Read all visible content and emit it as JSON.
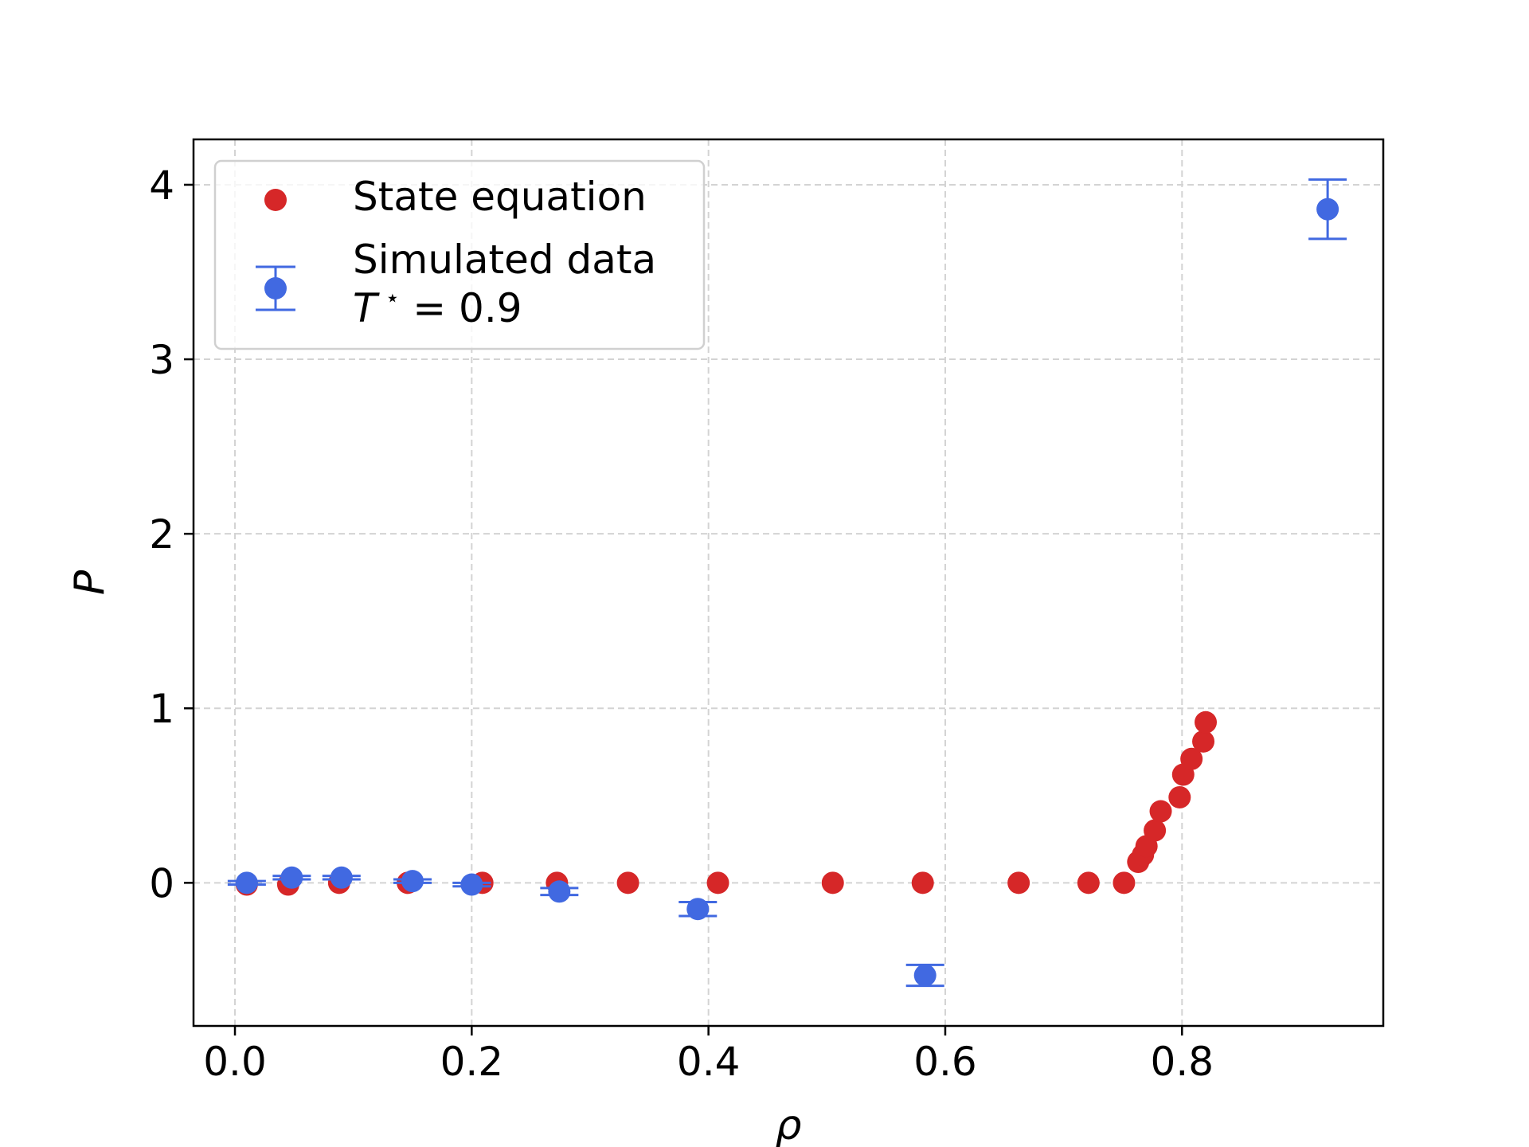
{
  "chart_data": {
    "type": "scatter",
    "xlabel": "ρ",
    "ylabel": "P",
    "xlim": [
      -0.035,
      0.97
    ],
    "ylim": [
      -0.82,
      4.26
    ],
    "xticks": [
      0.0,
      0.2,
      0.4,
      0.6,
      0.8
    ],
    "xtick_labels": [
      "0.0",
      "0.2",
      "0.4",
      "0.6",
      "0.8"
    ],
    "yticks": [
      0,
      1,
      2,
      3,
      4
    ],
    "ytick_labels": [
      "0",
      "1",
      "2",
      "3",
      "4"
    ],
    "grid": true,
    "legend_position": "upper-left",
    "series": [
      {
        "name": "State equation",
        "color": "#d62728",
        "marker": "circle",
        "x": [
          0.01,
          0.045,
          0.088,
          0.146,
          0.209,
          0.272,
          0.332,
          0.408,
          0.505,
          0.581,
          0.662,
          0.721,
          0.751,
          0.763,
          0.767,
          0.77,
          0.777,
          0.782,
          0.798,
          0.801,
          0.808,
          0.818,
          0.82
        ],
        "y": [
          -0.01,
          -0.01,
          0.0,
          0.0,
          0.0,
          0.0,
          0.0,
          0.0,
          0.0,
          0.0,
          0.0,
          0.0,
          0.0,
          0.12,
          0.16,
          0.21,
          0.3,
          0.41,
          0.49,
          0.62,
          0.71,
          0.81,
          0.92
        ]
      },
      {
        "name": "Simulated data\nT⋆ = 0.9",
        "label_line1": "Simulated data",
        "label_line2_var": "T",
        "label_line2_sup": "⋆",
        "label_line2_rest": " = 0.9",
        "color": "#4169e1",
        "marker": "circle",
        "errorbars": true,
        "x": [
          0.01,
          0.048,
          0.09,
          0.15,
          0.2,
          0.274,
          0.391,
          0.583,
          0.923
        ],
        "y": [
          0.0,
          0.03,
          0.03,
          0.01,
          -0.01,
          -0.05,
          -0.15,
          -0.53,
          3.86
        ],
        "yerr": [
          0.01,
          0.01,
          0.01,
          0.01,
          0.01,
          0.02,
          0.04,
          0.06,
          0.17
        ]
      }
    ]
  }
}
